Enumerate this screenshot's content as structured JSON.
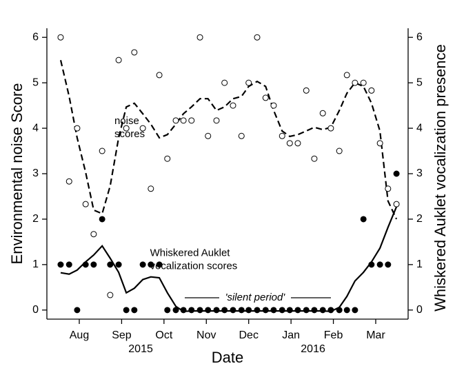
{
  "chart_data": {
    "type": "scatter",
    "x_label": "Date",
    "y_label": "Environmental noise Score",
    "y2_label": "Whiskered Auklet vocalization presence",
    "xlim": [
      7.235,
      15.765
    ],
    "xticks": [
      {
        "value": 8,
        "label": "Aug"
      },
      {
        "value": 9,
        "label": "Sep"
      },
      {
        "value": 10,
        "label": "Oct"
      },
      {
        "value": 11,
        "label": "Nov"
      },
      {
        "value": 12,
        "label": "Dec"
      },
      {
        "value": 13,
        "label": "Jan"
      },
      {
        "value": 14,
        "label": "Feb"
      },
      {
        "value": 15,
        "label": "Mar"
      }
    ],
    "year_labels": [
      {
        "value": 9.45,
        "label": "2015"
      },
      {
        "value": 13.52,
        "label": "2016"
      }
    ],
    "ylim": [
      -0.2,
      6.2
    ],
    "yticks": [
      0,
      1,
      2,
      3,
      4,
      5,
      6
    ],
    "y2lim": [
      -0.2,
      6.2
    ],
    "y2ticks": [
      0,
      1,
      2,
      3,
      4,
      5,
      6
    ],
    "x": [
      7.56,
      7.76,
      7.95,
      8.15,
      8.34,
      8.54,
      8.73,
      8.93,
      9.11,
      9.3,
      9.5,
      9.69,
      9.89,
      10.08,
      10.28,
      10.46,
      10.65,
      10.85,
      11.04,
      11.24,
      11.43,
      11.63,
      11.83,
      12.0,
      12.2,
      12.4,
      12.59,
      12.79,
      12.97,
      13.16,
      13.36,
      13.55,
      13.75,
      13.94,
      14.14,
      14.32,
      14.51,
      14.71,
      14.9,
      15.1,
      15.29,
      15.49
    ],
    "series": [
      {
        "type": "scatter",
        "marker": "open",
        "color": "#000000",
        "values": [
          6.0,
          2.83,
          4.0,
          2.33,
          1.67,
          3.5,
          0.33,
          5.5,
          4.0,
          5.67,
          4.0,
          2.67,
          5.17,
          3.33,
          4.17,
          4.17,
          4.17,
          6.0,
          3.83,
          4.17,
          5.0,
          4.5,
          3.83,
          5.0,
          6.0,
          4.67,
          4.5,
          3.83,
          3.67,
          3.67,
          4.83,
          3.33,
          4.33,
          4.0,
          3.5,
          5.17,
          5.0,
          5.0,
          4.83,
          3.67,
          2.67,
          2.33
        ]
      },
      {
        "type": "scatter",
        "marker": "filled",
        "color": "#000000",
        "axis": "y2",
        "values": [
          1,
          1,
          0,
          1,
          1,
          2,
          1,
          1,
          0,
          0,
          1,
          1,
          1,
          0,
          0,
          0,
          0,
          0,
          0,
          0,
          0,
          0,
          0,
          0,
          0,
          0,
          0,
          0,
          0,
          0,
          0,
          0,
          0,
          0,
          0,
          0,
          0,
          2,
          1,
          1,
          1,
          3
        ]
      },
      {
        "type": "line",
        "dash": "dashed",
        "color": "#000000",
        "values": [
          5.5,
          4.7,
          3.79,
          3.03,
          2.2,
          2.12,
          2.73,
          3.79,
          4.47,
          4.55,
          4.32,
          4.09,
          3.79,
          3.86,
          4.09,
          4.32,
          4.47,
          4.65,
          4.65,
          4.39,
          4.47,
          4.65,
          4.7,
          4.92,
          5.03,
          4.92,
          4.39,
          3.94,
          3.82,
          3.86,
          3.94,
          4.02,
          3.97,
          4.02,
          4.39,
          4.77,
          5.0,
          4.92,
          4.55,
          3.94,
          2.4,
          2.0
        ]
      },
      {
        "type": "line",
        "dash": "solid",
        "color": "#000000",
        "axis": "y2",
        "values": [
          0.82,
          0.79,
          0.88,
          1.06,
          1.21,
          1.41,
          1.14,
          0.83,
          0.38,
          0.48,
          0.67,
          0.73,
          0.71,
          0.38,
          0.08,
          -0.03,
          -0.02,
          -0.02,
          -0.02,
          -0.02,
          -0.02,
          -0.02,
          -0.02,
          -0.02,
          -0.02,
          -0.02,
          -0.02,
          -0.02,
          -0.02,
          -0.02,
          -0.02,
          -0.02,
          -0.02,
          -0.03,
          0.06,
          0.3,
          0.64,
          0.83,
          1.06,
          1.36,
          1.82,
          2.27
        ]
      }
    ],
    "annotations": [
      {
        "lines": [
          "noise",
          "scores"
        ],
        "x": 8.83,
        "y": 4.15
      },
      {
        "lines": [
          "Whiskered Auklet",
          "vocalization scores"
        ],
        "x": 9.67,
        "y": 1.25
      },
      {
        "lines": [
          "'silent period'"
        ],
        "x": 12.15,
        "y": 0.27,
        "style": "italic"
      }
    ]
  }
}
